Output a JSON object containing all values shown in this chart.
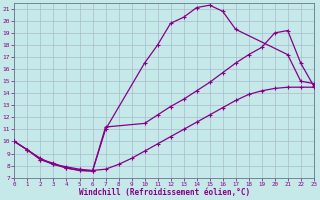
{
  "xlabel": "Windchill (Refroidissement éolien,°C)",
  "xlim": [
    0,
    23
  ],
  "ylim": [
    7,
    21.5
  ],
  "xticks": [
    0,
    1,
    2,
    3,
    4,
    5,
    6,
    7,
    8,
    9,
    10,
    11,
    12,
    13,
    14,
    15,
    16,
    17,
    18,
    19,
    20,
    21,
    22,
    23
  ],
  "yticks": [
    7,
    8,
    9,
    10,
    11,
    12,
    13,
    14,
    15,
    16,
    17,
    18,
    19,
    20,
    21
  ],
  "bg_color": "#c5e8e8",
  "grid_color": "#aabbcc",
  "line_color": "#880088",
  "curve1_x": [
    0,
    1,
    2,
    3,
    4,
    5,
    6,
    7,
    10,
    11,
    12,
    13,
    14,
    15,
    16,
    17,
    21,
    22,
    23
  ],
  "curve1_y": [
    10,
    9.3,
    8.5,
    8.2,
    7.8,
    7.6,
    7.55,
    11.0,
    16.5,
    18.0,
    19.8,
    20.3,
    21.1,
    21.3,
    20.8,
    19.3,
    17.2,
    15.0,
    14.8
  ],
  "curve2_x": [
    0,
    1,
    2,
    3,
    4,
    5,
    6,
    7,
    8,
    9,
    10,
    11,
    12,
    13,
    14,
    15,
    16,
    17,
    18,
    19,
    20,
    21,
    22,
    23
  ],
  "curve2_y": [
    10,
    9.3,
    8.6,
    8.1,
    7.9,
    7.7,
    7.6,
    7.7,
    8.1,
    8.6,
    9.2,
    9.8,
    10.4,
    11.0,
    11.6,
    12.2,
    12.8,
    13.4,
    13.9,
    14.2,
    14.4,
    14.5,
    14.5,
    14.5
  ],
  "curve3_x": [
    0,
    1,
    2,
    3,
    4,
    5,
    6,
    7,
    10,
    11,
    12,
    13,
    14,
    15,
    16,
    17,
    18,
    19,
    20,
    21,
    22,
    23
  ],
  "curve3_y": [
    10,
    9.3,
    8.5,
    8.1,
    7.8,
    7.6,
    7.55,
    11.2,
    11.5,
    12.2,
    12.9,
    13.5,
    14.2,
    14.9,
    15.7,
    16.5,
    17.2,
    17.8,
    19.0,
    19.2,
    16.5,
    14.6
  ]
}
